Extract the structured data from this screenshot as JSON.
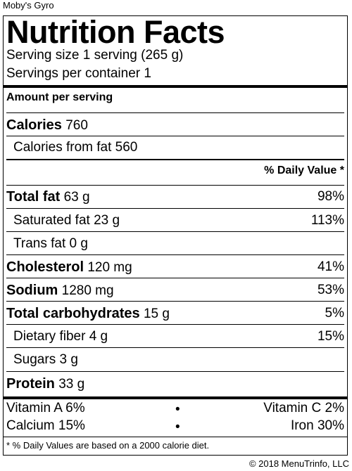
{
  "restaurant": "Moby's Gyro",
  "label": {
    "title": "Nutrition Facts",
    "serving_size": "Serving size 1 serving (265 g)",
    "servings_per_container": "Servings per container 1",
    "amount_per_serving": "Amount per serving",
    "calories": {
      "label": "Calories",
      "value": "760"
    },
    "calories_from_fat": "Calories from fat 560",
    "daily_value_header": "% Daily Value *",
    "nutrients": [
      {
        "label": "Total fat",
        "amount": "63 g",
        "dv": "98%"
      },
      {
        "label": "Saturated fat",
        "amount": "23 g",
        "dv": "113%"
      },
      {
        "label": "Trans fat",
        "amount": "0 g",
        "dv": ""
      },
      {
        "label": "Cholesterol",
        "amount": "120 mg",
        "dv": "41%"
      },
      {
        "label": "Sodium",
        "amount": "1280 mg",
        "dv": "53%"
      },
      {
        "label": "Total carbohydrates",
        "amount": "15 g",
        "dv": "5%"
      },
      {
        "label": "Dietary fiber",
        "amount": "4 g",
        "dv": "15%"
      },
      {
        "label": "Sugars",
        "amount": "3 g",
        "dv": ""
      },
      {
        "label": "Protein",
        "amount": "33 g",
        "dv": ""
      }
    ],
    "vitamins": [
      {
        "left": "Vitamin A 6%",
        "right": "Vitamin C 2%"
      },
      {
        "left": "Calcium 15%",
        "right": "Iron 30%"
      }
    ],
    "bullet": "•",
    "footnote": "* % Daily Values are based on a 2000 calorie diet."
  },
  "copyright": "© 2018 MenuTrinfo, LLC"
}
